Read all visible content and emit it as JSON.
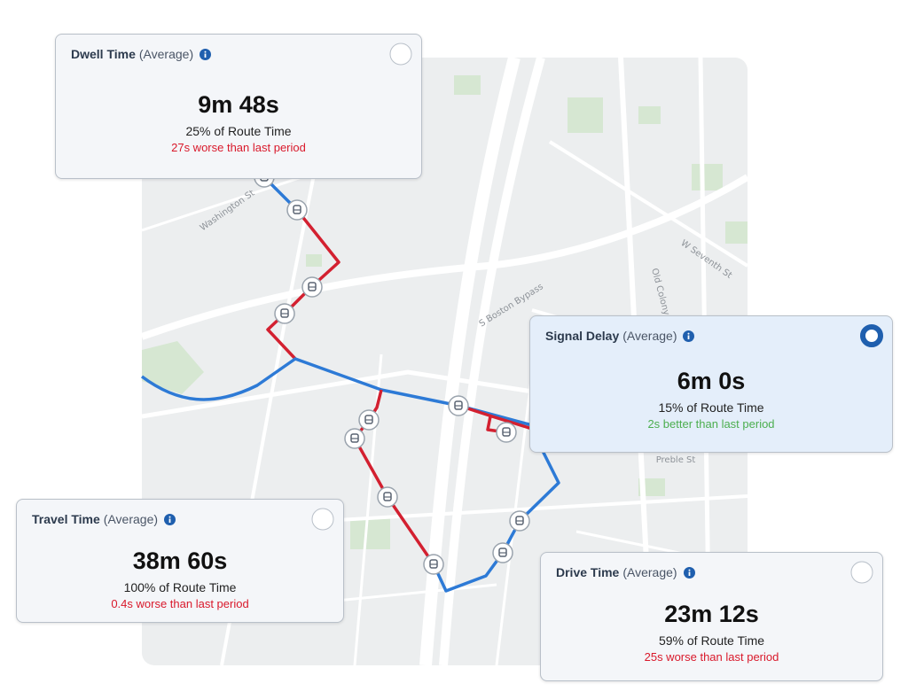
{
  "map": {
    "street_labels": [
      "Washington St",
      "S Boston Bypass",
      "W Seventh St",
      "Old Colony",
      "Preble St"
    ]
  },
  "cards": [
    {
      "title": "Dwell Time",
      "qualifier": "(Average)",
      "value": "9m 48s",
      "share": "25% of Route Time",
      "comparison": "27s worse than last period",
      "comparison_color": "#d9192b",
      "selected": false
    },
    {
      "title": "Signal Delay",
      "qualifier": "(Average)",
      "value": "6m 0s",
      "share": "15% of Route Time",
      "comparison": "2s better than last period",
      "comparison_color": "#4cae4f",
      "selected": true
    },
    {
      "title": "Travel Time",
      "qualifier": "(Average)",
      "value": "38m 60s",
      "share": "100% of Route Time",
      "comparison": "0.4s worse than last period",
      "comparison_color": "#d9192b",
      "selected": false
    },
    {
      "title": "Drive Time",
      "qualifier": "(Average)",
      "value": "23m 12s",
      "share": "59% of Route Time",
      "comparison": "25s worse than last period",
      "comparison_color": "#d9192b",
      "selected": false
    }
  ]
}
